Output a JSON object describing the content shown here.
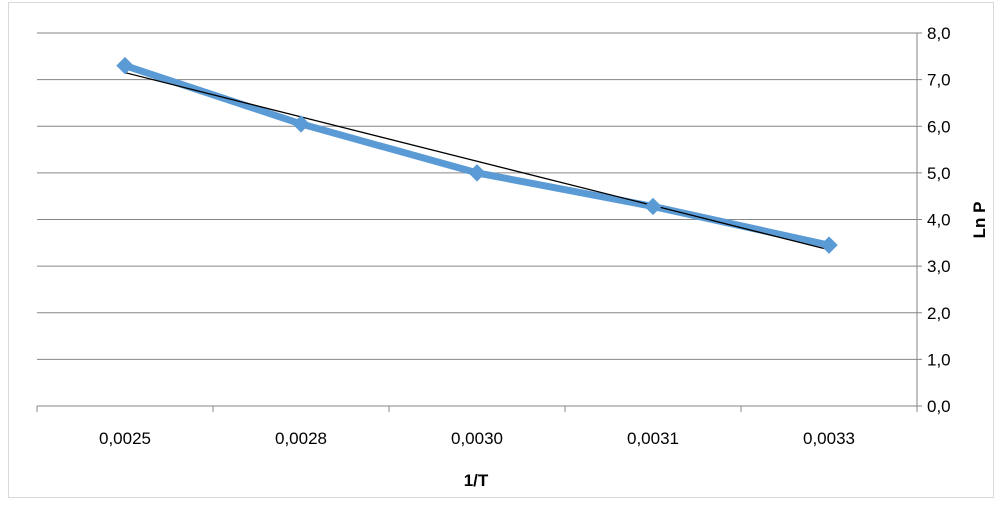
{
  "chart_data": {
    "type": "line",
    "categories": [
      "0,0025",
      "0,0028",
      "0,0030",
      "0,0031",
      "0,0033"
    ],
    "series": [
      {
        "values": [
          7.3,
          6.05,
          5.0,
          4.28,
          3.45
        ],
        "color": "#5b9bd5",
        "marker": "diamond"
      }
    ],
    "trendline": {
      "type": "linear",
      "color": "#000000",
      "values": [
        7.15,
        6.2,
        5.25,
        4.3,
        3.35
      ]
    },
    "xlabel": "1/T",
    "ylabel": "Ln P",
    "ylim": [
      0,
      8
    ],
    "y_ticks": [
      "0,0",
      "1,0",
      "2,0",
      "3,0",
      "4,0",
      "5,0",
      "6,0",
      "7,0",
      "8,0"
    ],
    "y_axis_position": "right",
    "grid": true,
    "legend": "none"
  }
}
